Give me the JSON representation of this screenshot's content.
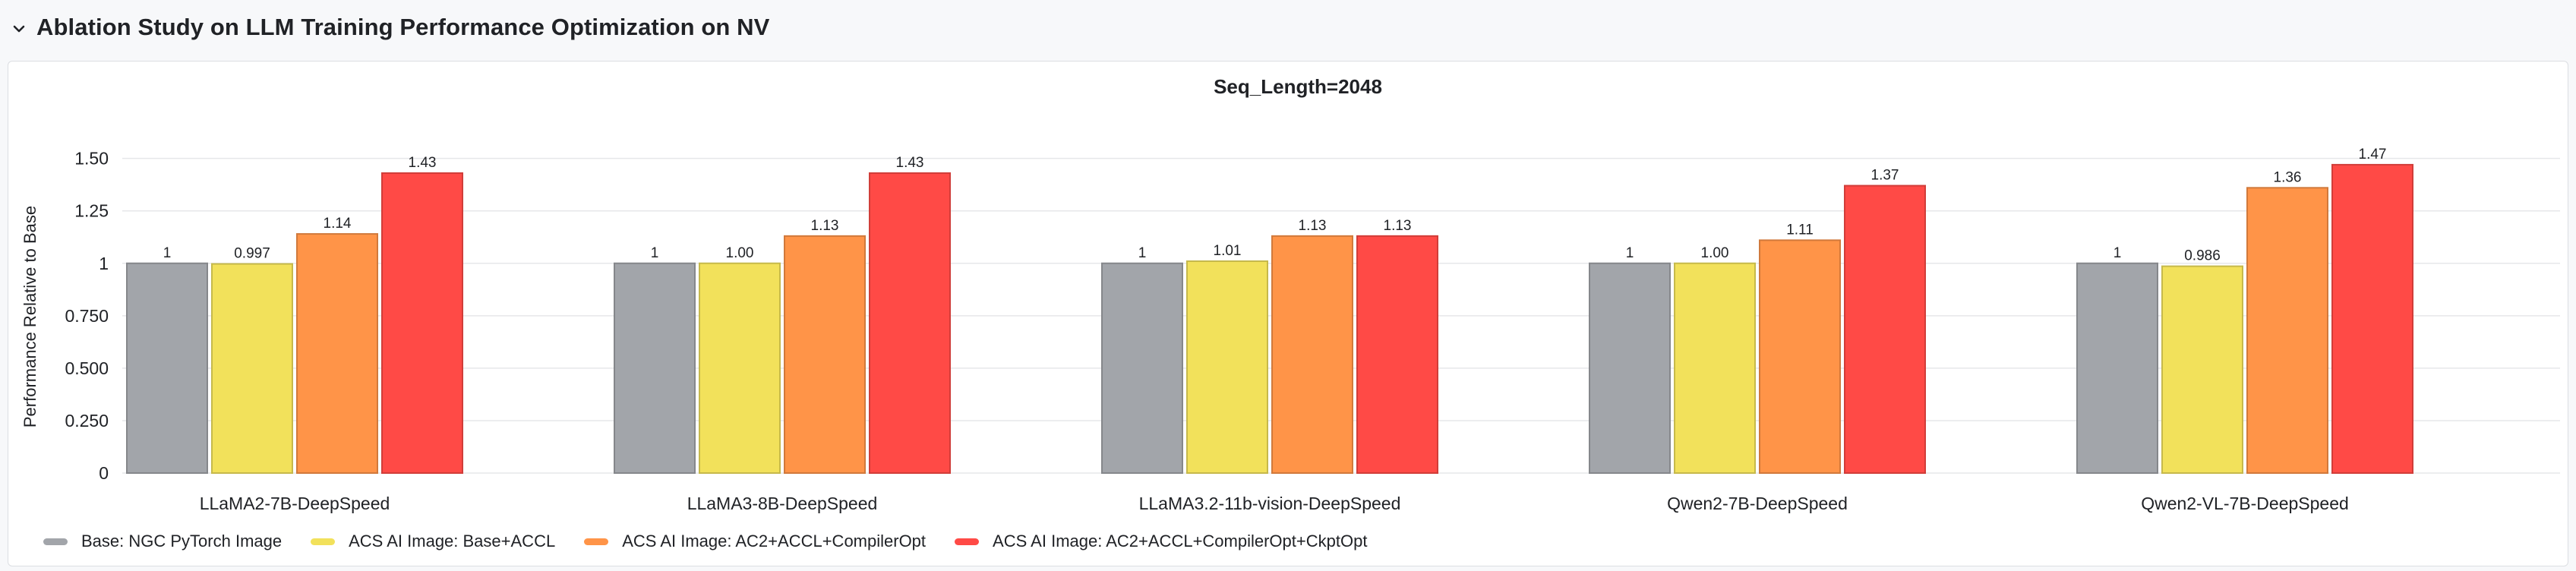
{
  "section": {
    "title": "Ablation Study on LLM Training Performance Optimization on NV",
    "icon": "chevron-down-icon"
  },
  "chart_data": {
    "type": "bar",
    "title": "Seq_Length=2048",
    "xlabel": "",
    "ylabel": "Performance Relative to Base",
    "ylim": [
      0,
      1.6
    ],
    "yticks": [
      0,
      0.25,
      0.5,
      0.75,
      1,
      1.25,
      1.5
    ],
    "ytick_labels": [
      "0",
      "0.250",
      "0.500",
      "0.750",
      "1",
      "1.25",
      "1.50"
    ],
    "grid": true,
    "legend_position": "bottom-left",
    "categories": [
      "LLaMA2-7B-DeepSpeed",
      "LLaMA3-8B-DeepSpeed",
      "LLaMA3.2-11b-vision-DeepSpeed",
      "Qwen2-7B-DeepSpeed",
      "Qwen2-VL-7B-DeepSpeed"
    ],
    "series": [
      {
        "name": "Base: NGC PyTorch Image",
        "color": "#a2a5aa",
        "values": [
          1,
          1,
          1,
          1,
          1
        ],
        "labels": [
          "1",
          "1",
          "1",
          "1",
          "1"
        ]
      },
      {
        "name": "ACS AI Image: Base+ACCL",
        "color": "#f2e15b",
        "values": [
          0.997,
          1.0,
          1.01,
          1.0,
          0.986
        ],
        "labels": [
          "0.997",
          "1.00",
          "1.01",
          "1.00",
          "0.986"
        ]
      },
      {
        "name": "ACS AI Image: AC2+ACCL+CompilerOpt",
        "color": "#ff9448",
        "values": [
          1.14,
          1.13,
          1.13,
          1.11,
          1.36
        ],
        "labels": [
          "1.14",
          "1.13",
          "1.13",
          "1.11",
          "1.36"
        ]
      },
      {
        "name": "ACS AI Image: AC2+ACCL+CompilerOpt+CkptOpt",
        "color": "#ff4a46",
        "values": [
          1.43,
          1.43,
          1.13,
          1.37,
          1.47
        ],
        "labels": [
          "1.43",
          "1.43",
          "1.13",
          "1.37",
          "1.47"
        ]
      }
    ]
  }
}
